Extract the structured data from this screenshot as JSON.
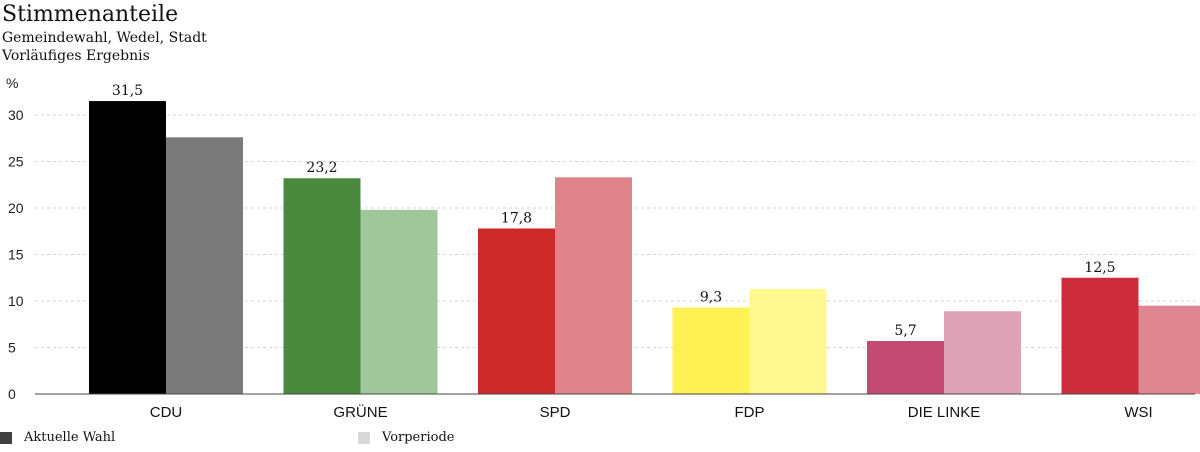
{
  "title": "Stimmenanteile",
  "subtitle_lines": [
    "Gemeindewahl, Wedel, Stadt",
    "Vorläufiges Ergebnis"
  ],
  "chart_data": {
    "type": "bar",
    "ylabel": "%",
    "ylim": [
      0,
      33
    ],
    "yticks": [
      0,
      5,
      10,
      15,
      20,
      25,
      30
    ],
    "grid": true,
    "legend_position": "bottom-left",
    "categories": [
      "CDU",
      "GRÜNE",
      "SPD",
      "FDP",
      "DIE LINKE",
      "WSI"
    ],
    "series": [
      {
        "name": "Aktuelle Wahl",
        "values": [
          31.5,
          23.2,
          17.8,
          9.3,
          5.7,
          12.5
        ],
        "labels": [
          "31,5",
          "23,2",
          "17,8",
          "9,3",
          "5,7",
          "12,5"
        ],
        "colors": [
          "#000000",
          "#4a8a3e",
          "#cc2929",
          "#fdf154",
          "#c44a73",
          "#cc2c3c"
        ]
      },
      {
        "name": "Vorperiode",
        "values": [
          27.6,
          19.8,
          23.3,
          11.3,
          8.9,
          9.5
        ],
        "colors": [
          "#7a7a7a",
          "#a1c69b",
          "#de838a",
          "#fdf890",
          "#dfa3b8",
          "#e08592"
        ]
      }
    ],
    "legend_colors": [
      "#404040",
      "#d9d9d9"
    ]
  }
}
